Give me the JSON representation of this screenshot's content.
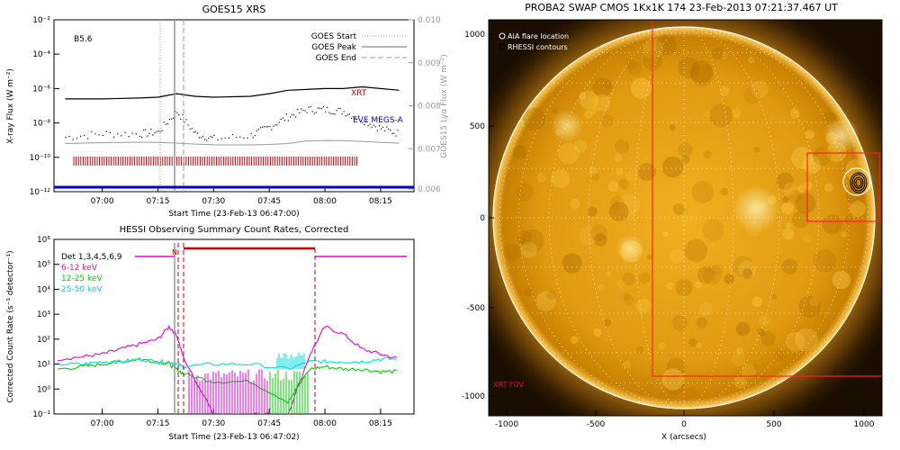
{
  "goes": {
    "title": "GOES15 XRS",
    "class_label": "B5.6",
    "ylabel_left": "X-ray Flux (W m⁻²)",
    "ylabel_right": "GOES15 Lyα Flux (W m⁻²)",
    "xlabel": "Start Time (23-Feb-13 06:47:00)",
    "left_ticks": [
      "10⁻²",
      "10⁻⁴",
      "10⁻⁶",
      "10⁻⁸",
      "10⁻¹⁰",
      "10⁻¹²"
    ],
    "right_ticks": [
      "0.010",
      "0.009",
      "0.008",
      "0.007",
      "0.006"
    ],
    "x_ticks": [
      "07:00",
      "07:15",
      "07:30",
      "07:45",
      "08:00",
      "08:15"
    ],
    "legend": [
      {
        "label": "GOES Start",
        "style": "dotted"
      },
      {
        "label": "GOES Peak",
        "style": "solid"
      },
      {
        "label": "GOES End",
        "style": "dashed"
      }
    ],
    "annotations": {
      "xrt": "XRT",
      "eve": "EVE MEGS-A"
    },
    "colors": {
      "xrt": "#cc0000",
      "eve": "#0000cc"
    }
  },
  "hessi": {
    "title": "HESSI Observing Summary Count Rates, Corrected",
    "ylabel": "Corrected Count Rate (s⁻¹ detector⁻¹)",
    "xlabel": "Start Time (23-Feb-13 06:47:02)",
    "y_ticks": [
      "10⁶",
      "10⁵",
      "10⁴",
      "10³",
      "10²",
      "10¹",
      "10⁰",
      "10⁻¹"
    ],
    "x_ticks": [
      "07:00",
      "07:15",
      "07:30",
      "07:45",
      "08:00",
      "08:15"
    ],
    "marker_label": "N",
    "legend": [
      {
        "label": "Det 1,3,4,5,6,9",
        "color": "#000000"
      },
      {
        "label": "6-12 keV",
        "color": "#dd00dd"
      },
      {
        "label": "12-25 keV",
        "color": "#00cc00"
      },
      {
        "label": "25-50 keV",
        "color": "#00dddd"
      }
    ]
  },
  "swap": {
    "title": "PROBA2 SWAP CMOS 1Kx1K 174 23-Feb-2013 07:21:37.467 UT",
    "xlabel": "X (arcsecs)",
    "legend": [
      "AIA flare location",
      "RHESSI contours"
    ],
    "fov_label": "XRT FOV",
    "x_ticks": [
      "-1000",
      "-500",
      "0",
      "500",
      "1000"
    ],
    "y_ticks": [
      "1000",
      "500",
      "0",
      "-500",
      "-1000"
    ],
    "colors": {
      "fov": "#ff2020",
      "limb": "#ffffff"
    }
  },
  "chart_data": [
    {
      "type": "line",
      "title": "GOES15 XRS",
      "xlabel": "Start Time (23-Feb-13 06:47:00)",
      "ylabel": "X-ray Flux (W m^-2)",
      "ylabel_right": "GOES15 Lyα Flux (W m^-2)",
      "x": [
        "06:50",
        "07:00",
        "07:10",
        "07:15",
        "07:20",
        "07:25",
        "07:30",
        "07:40",
        "07:45",
        "07:50",
        "07:55",
        "08:00",
        "08:05",
        "08:10",
        "08:15",
        "08:20"
      ],
      "ylim_log10": [
        -12,
        -2
      ],
      "series": [
        {
          "name": "XRT",
          "values_log10": [
            -6.6,
            -6.6,
            -6.55,
            -6.5,
            -6.3,
            -6.45,
            -6.5,
            -6.45,
            -6.3,
            -6.1,
            -6.05,
            -6.0,
            -6.0,
            -5.9,
            -6.0,
            -6.1
          ]
        },
        {
          "name": "EVE MEGS-A",
          "values_log10": [
            -8.8,
            -8.6,
            -8.6,
            -8.5,
            -7.3,
            -8.6,
            -8.9,
            -8.7,
            -8.2,
            -7.6,
            -7.2,
            -7.2,
            -7.3,
            -7.8,
            -8.3,
            -8.6
          ]
        }
      ],
      "goes_start": "07:17",
      "goes_peak": "07:20",
      "goes_end": "07:22"
    },
    {
      "type": "line",
      "title": "HESSI Observing Summary Count Rates, Corrected",
      "xlabel": "Start Time (23-Feb-13 06:47:02)",
      "ylabel": "Corrected Count Rate (s^-1 detector^-1)",
      "ylim_log10": [
        -1,
        6
      ],
      "x": [
        "06:48",
        "06:55",
        "07:00",
        "07:05",
        "07:10",
        "07:15",
        "07:18",
        "07:20",
        "07:22",
        "07:30",
        "07:40",
        "07:50",
        "07:56",
        "08:00",
        "08:05",
        "08:10",
        "08:15",
        "08:20"
      ],
      "series": [
        {
          "name": "6-12 keV",
          "values_log10": [
            1.2,
            1.3,
            1.4,
            1.6,
            1.8,
            2.0,
            2.5,
            2.2,
            1.2,
            -1.0,
            -1.0,
            -1.0,
            1.4,
            2.5,
            2.2,
            1.6,
            1.4,
            1.2
          ]
        },
        {
          "name": "12-25 keV",
          "values_log10": [
            0.8,
            0.9,
            1.0,
            1.1,
            1.2,
            1.1,
            1.0,
            0.8,
            0.6,
            0.3,
            0.3,
            -0.5,
            0.8,
            0.9,
            0.8,
            0.8,
            0.7,
            0.7
          ]
        },
        {
          "name": "25-50 keV",
          "values_log10": [
            1.0,
            1.0,
            1.1,
            1.1,
            1.2,
            1.1,
            1.1,
            1.0,
            0.9,
            1.0,
            1.0,
            0.8,
            1.1,
            1.1,
            1.1,
            1.1,
            1.2,
            1.2
          ]
        }
      ],
      "attenuator_start": "07:21",
      "attenuator_end": "07:57"
    }
  ]
}
